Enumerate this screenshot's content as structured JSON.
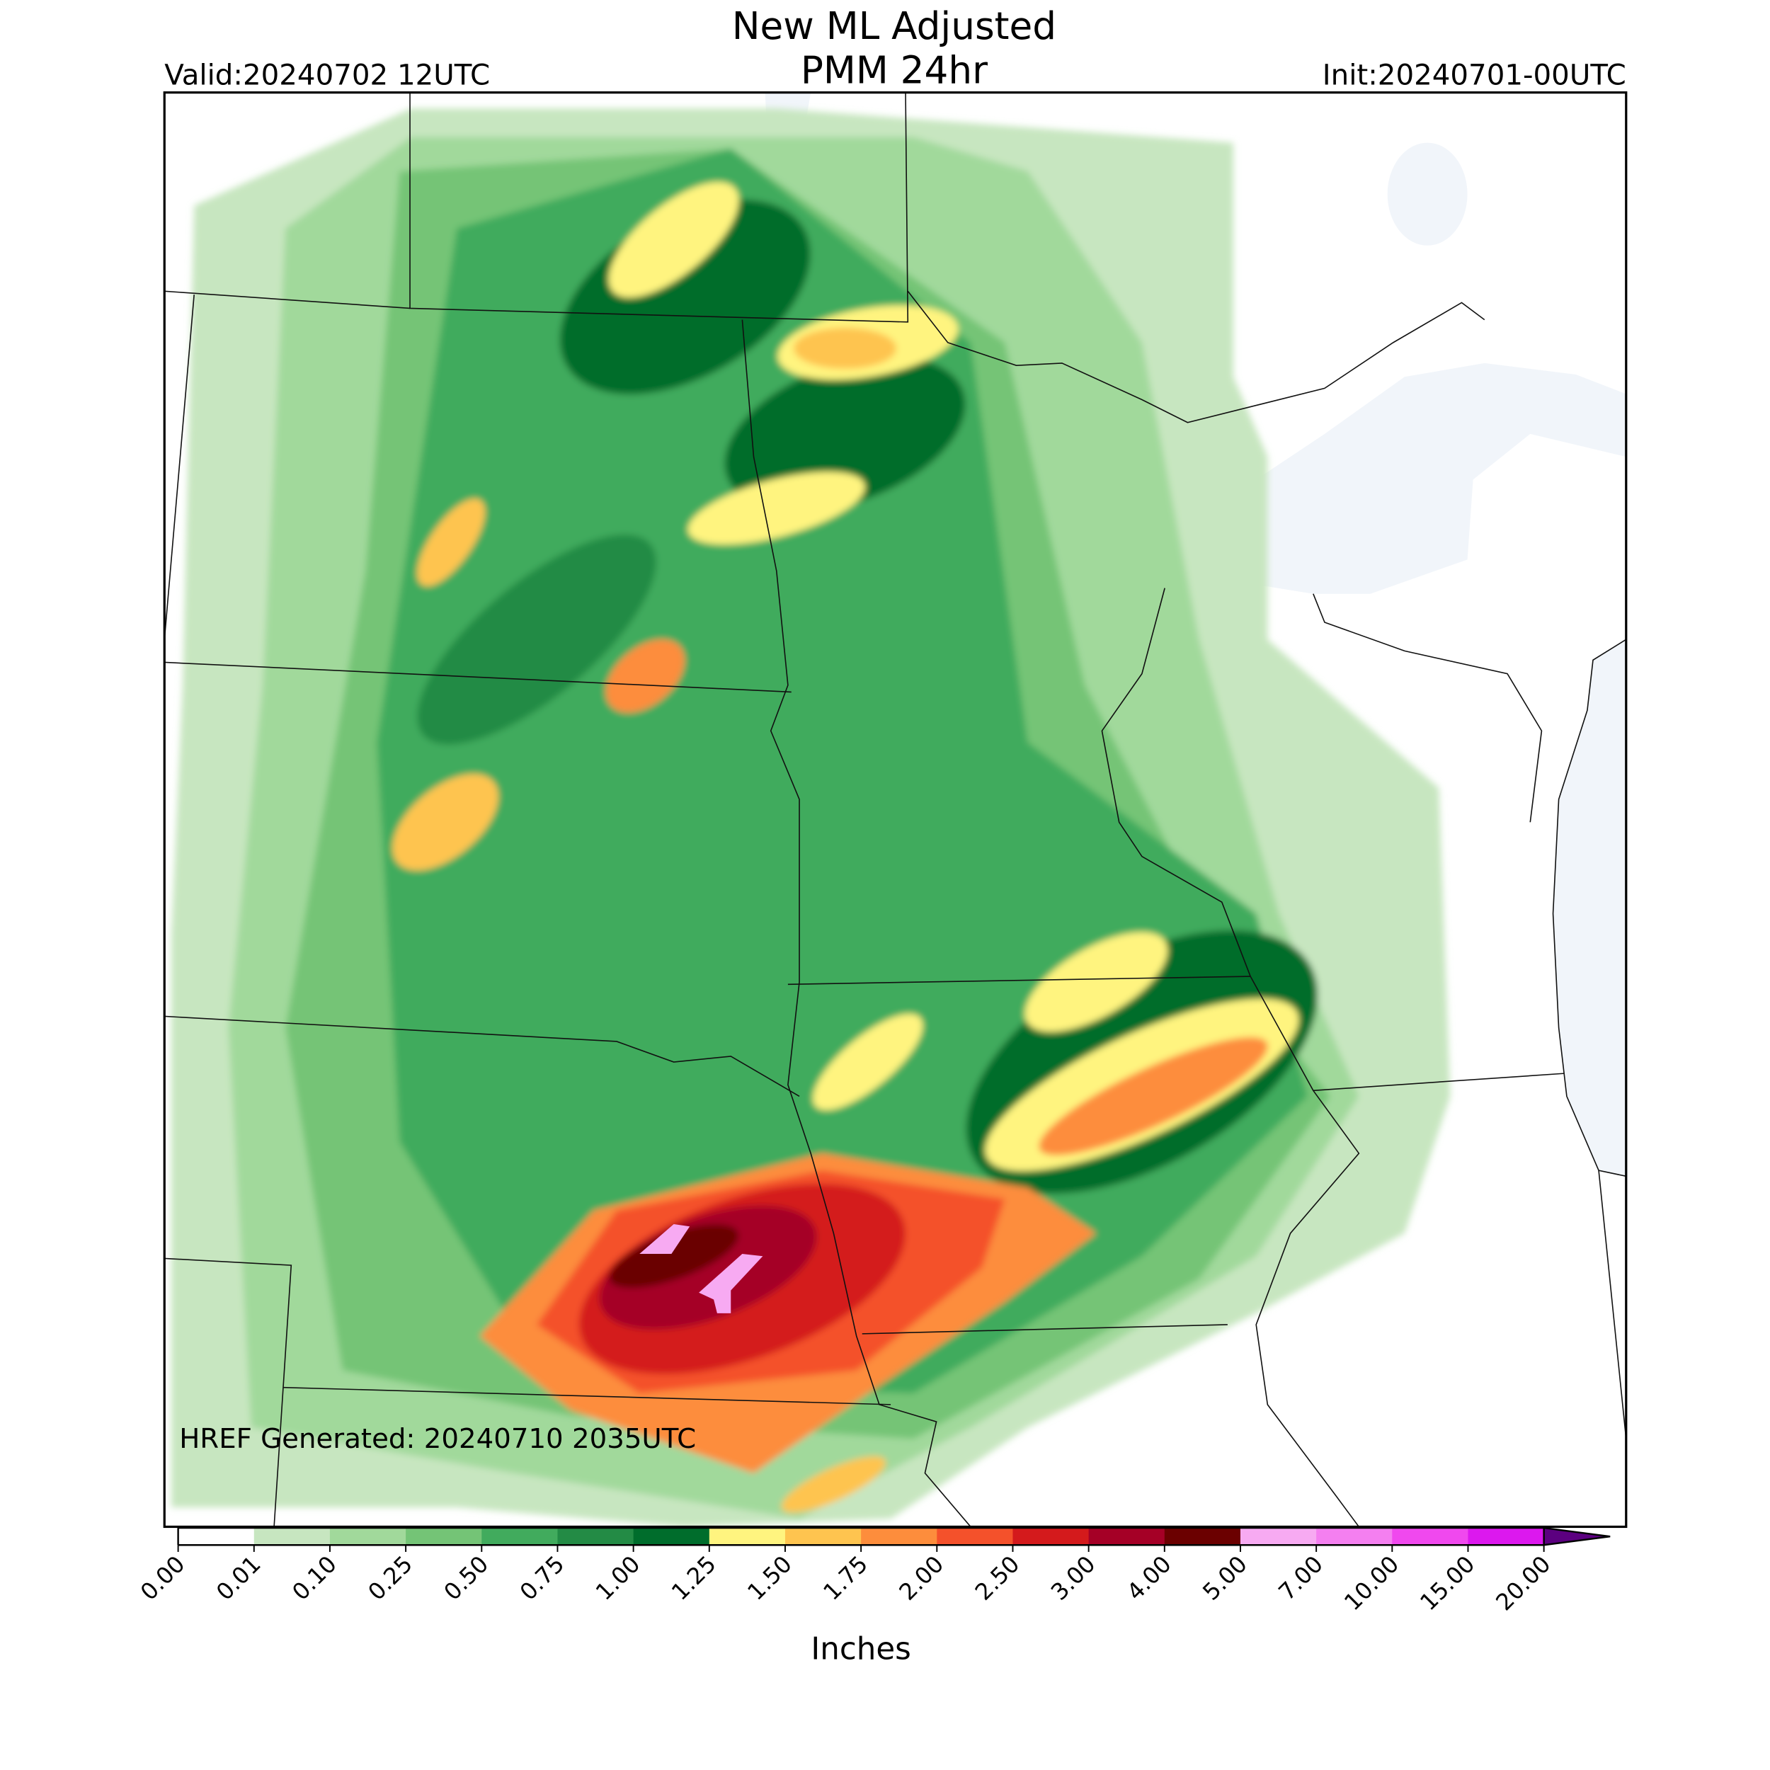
{
  "header": {
    "title": [
      "New ML Adjusted",
      "PMM 24hr"
    ],
    "valid": "Valid:20240702 12UTC",
    "init": "Init:20240701-00UTC"
  },
  "footer": {
    "generated": "HREF Generated: 20240710 2035UTC"
  },
  "colorbar": {
    "label": "Inches",
    "ticks": [
      {
        "value": 0,
        "label": "0.00"
      },
      {
        "value": 0.01,
        "label": "0.01"
      },
      {
        "value": 0.1,
        "label": "0.10"
      },
      {
        "value": 0.25,
        "label": "0.25"
      },
      {
        "value": 0.5,
        "label": "0.50"
      },
      {
        "value": 0.75,
        "label": "0.75"
      },
      {
        "value": 1,
        "label": "1.00"
      },
      {
        "value": 1.25,
        "label": "1.25"
      },
      {
        "value": 1.5,
        "label": "1.50"
      },
      {
        "value": 1.75,
        "label": "1.75"
      },
      {
        "value": 2,
        "label": "2.00"
      },
      {
        "value": 2.5,
        "label": "2.50"
      },
      {
        "value": 3,
        "label": "3.00"
      },
      {
        "value": 4,
        "label": "4.00"
      },
      {
        "value": 5,
        "label": "5.00"
      },
      {
        "value": 7,
        "label": "7.00"
      },
      {
        "value": 10,
        "label": "10.00"
      },
      {
        "value": 15,
        "label": "15.00"
      },
      {
        "value": 20,
        "label": "20.00"
      }
    ],
    "colors": [
      "#ffffff",
      "#c7e6c0",
      "#a1d99b",
      "#74c476",
      "#41ab5d",
      "#238b45",
      "#006d2c",
      "#fff47f",
      "#fec44f",
      "#fd8d3c",
      "#f4512b",
      "#d41a1c",
      "#a50026",
      "#6b0000",
      "#f7aaf2",
      "#f47ff0",
      "#f048ee",
      "#dc18ee",
      "#a80ed4"
    ],
    "over_color": "#5c0080"
  }
}
